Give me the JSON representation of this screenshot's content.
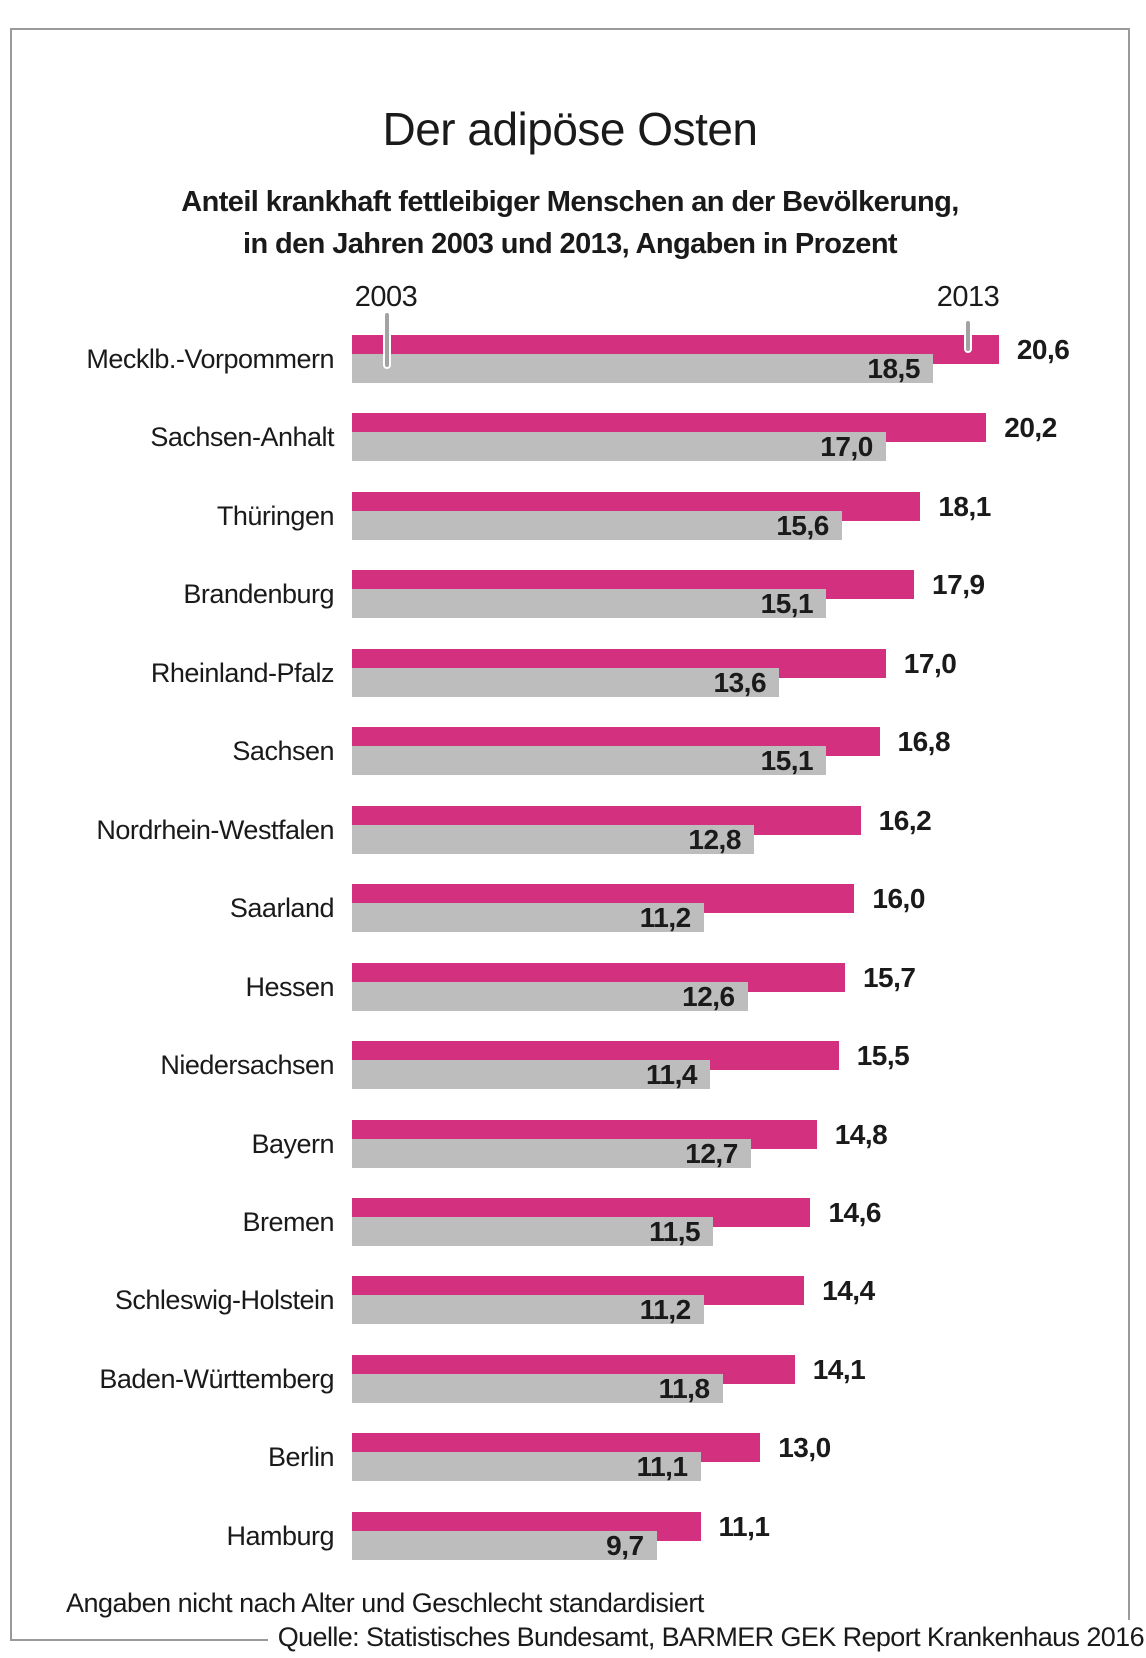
{
  "title": "Der adipöse Osten",
  "subtitle_line1": "Anteil krankhaft fettleibiger Menschen an der Bevölkerung,",
  "subtitle_line2": "in den Jahren 2003 und 2013, Angaben in Prozent",
  "legend": {
    "year_2003": "2003",
    "year_2013": "2013"
  },
  "footnote": "Angaben nicht nach Alter und Geschlecht standardisiert",
  "source": "Quelle: Statistisches Bundesamt, BARMER GEK Report Krankenhaus 2016",
  "colors": {
    "bar_2013": "#d43080",
    "bar_2003": "#bdbdbd",
    "text": "#1a1a1a",
    "frame": "#9a9a9a",
    "pin": "#a3a3a3"
  },
  "chart_data": {
    "type": "bar",
    "orientation": "horizontal",
    "title": "Der adipöse Osten",
    "unit": "Prozent",
    "xlim": [
      0,
      21
    ],
    "grid": false,
    "legend_position": "callout-pins-above-first-row",
    "categories": [
      "Mecklb.-Vorpommern",
      "Sachsen-Anhalt",
      "Thüringen",
      "Brandenburg",
      "Rheinland-Pfalz",
      "Sachsen",
      "Nordrhein-Westfalen",
      "Saarland",
      "Hessen",
      "Niedersachsen",
      "Bayern",
      "Bremen",
      "Schleswig-Holstein",
      "Baden-Württemberg",
      "Berlin",
      "Hamburg"
    ],
    "series": [
      {
        "name": "2013",
        "color": "#d43080",
        "values": [
          20.6,
          20.2,
          18.1,
          17.9,
          17.0,
          16.8,
          16.2,
          16.0,
          15.7,
          15.5,
          14.8,
          14.6,
          14.4,
          14.1,
          13.0,
          11.1
        ]
      },
      {
        "name": "2003",
        "color": "#bdbdbd",
        "values": [
          18.5,
          17.0,
          15.6,
          15.1,
          13.6,
          15.1,
          12.8,
          11.2,
          12.6,
          11.4,
          12.7,
          11.5,
          11.2,
          11.8,
          11.1,
          9.7
        ]
      }
    ],
    "value_labels_2013": [
      "20,6",
      "20,2",
      "18,1",
      "17,9",
      "17,0",
      "16,8",
      "16,2",
      "16,0",
      "15,7",
      "15,5",
      "14,8",
      "14,6",
      "14,4",
      "14,1",
      "13,0",
      "11,1"
    ],
    "value_labels_2003": [
      "18,5",
      "17,0",
      "15,6",
      "15,1",
      "13,6",
      "15,1",
      "12,8",
      "11,2",
      "12,6",
      "11,4",
      "12,7",
      "11,5",
      "11,2",
      "11,8",
      "11,1",
      "9,7"
    ]
  }
}
